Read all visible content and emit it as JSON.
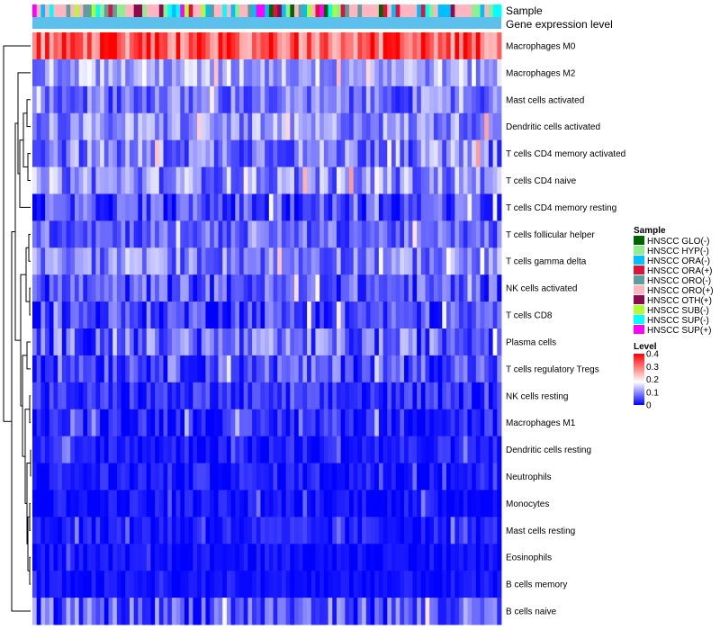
{
  "chart_data": {
    "type": "heatmap",
    "title": "",
    "annotation_labels": {
      "sample": "Sample",
      "expression": "Gene expression level"
    },
    "rows": [
      {
        "label": "Macrophages M0",
        "mean": 0.33,
        "spread": 0.1
      },
      {
        "label": "Macrophages M2",
        "mean": 0.12,
        "spread": 0.06
      },
      {
        "label": "Mast cells activated",
        "mean": 0.08,
        "spread": 0.06
      },
      {
        "label": "Dendritic cells activated",
        "mean": 0.1,
        "spread": 0.06
      },
      {
        "label": "T cells CD4 memory activated",
        "mean": 0.09,
        "spread": 0.07
      },
      {
        "label": "T cells CD4 naive",
        "mean": 0.1,
        "spread": 0.07
      },
      {
        "label": "T cells CD4 memory resting",
        "mean": 0.05,
        "spread": 0.06
      },
      {
        "label": "T cells follicular helper",
        "mean": 0.07,
        "spread": 0.05
      },
      {
        "label": "T cells gamma delta",
        "mean": 0.09,
        "spread": 0.06
      },
      {
        "label": "NK cells activated",
        "mean": 0.06,
        "spread": 0.06
      },
      {
        "label": "T cells CD8",
        "mean": 0.05,
        "spread": 0.06
      },
      {
        "label": "Plasma cells",
        "mean": 0.07,
        "spread": 0.07
      },
      {
        "label": "T cells regulatory  Tregs",
        "mean": 0.06,
        "spread": 0.06
      },
      {
        "label": "NK cells resting",
        "mean": 0.03,
        "spread": 0.04
      },
      {
        "label": "Macrophages M1",
        "mean": 0.03,
        "spread": 0.04
      },
      {
        "label": "Dendritic cells resting",
        "mean": 0.02,
        "spread": 0.03
      },
      {
        "label": "Neutrophils",
        "mean": 0.02,
        "spread": 0.03
      },
      {
        "label": "Monocytes",
        "mean": 0.01,
        "spread": 0.03
      },
      {
        "label": "Mast cells resting",
        "mean": 0.02,
        "spread": 0.03
      },
      {
        "label": "Eosinophils",
        "mean": 0.01,
        "spread": 0.02
      },
      {
        "label": "B cells memory",
        "mean": 0.01,
        "spread": 0.02
      },
      {
        "label": "B cells naive",
        "mean": 0.06,
        "spread": 0.07
      }
    ],
    "n_samples": 111,
    "sample_groups": [
      {
        "label": "HNSCC GLO(-)",
        "color": "#006400"
      },
      {
        "label": "HNSCC HYP(-)",
        "color": "#90EE90"
      },
      {
        "label": "HNSCC ORA(-)",
        "color": "#00BFFF"
      },
      {
        "label": "HNSCC ORA(+)",
        "color": "#DC143C"
      },
      {
        "label": "HNSCC ORO(-)",
        "color": "#5F9EA0"
      },
      {
        "label": "HNSCC ORO(+)",
        "color": "#FFB6C1"
      },
      {
        "label": "HNSCC OTH(+)",
        "color": "#8B0A50"
      },
      {
        "label": "HNSCC SUB(-)",
        "color": "#ADFF2F"
      },
      {
        "label": "HNSCC SUP(-)",
        "color": "#00FFFF"
      },
      {
        "label": "HNSCC SUP(+)",
        "color": "#FF00FF"
      }
    ],
    "expression_bar_color": "#5BC0EB",
    "color_scale": {
      "title": "Level",
      "range": [
        0,
        0.4
      ],
      "ticks": [
        "0.4",
        "0.3",
        "0.2",
        "0.1",
        "0"
      ],
      "tick_values": [
        0.4,
        0.3,
        0.2,
        0.1,
        0
      ],
      "low_color": "#0000FF",
      "mid_color": "#FFFFFF",
      "high_color": "#FF0000",
      "mid_value": 0.18
    },
    "legend_title": "Sample"
  }
}
